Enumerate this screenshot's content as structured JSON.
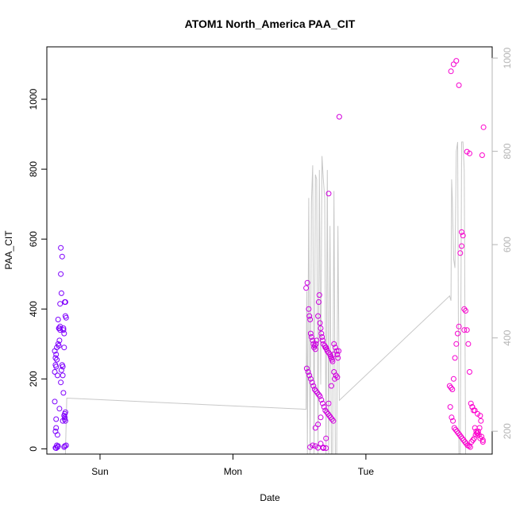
{
  "chart_data": {
    "type": "scatter",
    "title": "ATOM1 North_America PAA_CIT",
    "xlabel": "Date",
    "ylabel": "PAA_CIT",
    "x_ticks": [
      {
        "x": 1.0,
        "label": "Sun"
      },
      {
        "x": 2.0,
        "label": "Mon"
      },
      {
        "x": 3.0,
        "label": "Tue"
      }
    ],
    "y_ticks": [
      0,
      200,
      400,
      600,
      800,
      1000
    ],
    "ylim": [
      -15,
      1150
    ],
    "xlim": [
      0.6,
      3.95
    ],
    "y2_ticks": [
      200,
      400,
      600,
      800,
      1000
    ],
    "y2lim": [
      1024,
      151
    ],
    "colors": {
      "points_start": "#7a00ff",
      "points_end": "#ff00cc",
      "line": "#c8c8c8",
      "axis": "#000000",
      "axis_right": "#b4b4b4"
    },
    "series": [
      {
        "name": "",
        "kind": "points",
        "x": [
          0.66,
          0.67,
          0.665,
          0.67,
          0.68,
          0.675,
          0.68,
          0.685,
          0.67,
          0.665,
          0.66,
          0.67,
          0.675,
          0.665,
          0.66,
          0.675,
          0.68,
          0.665,
          0.67,
          0.69,
          0.7,
          0.695,
          0.7,
          0.705,
          0.705,
          0.71,
          0.715,
          0.7,
          0.69,
          0.685,
          0.705,
          0.71,
          0.72,
          0.715,
          0.725,
          0.73,
          0.725,
          0.73,
          0.72,
          0.735,
          0.735,
          0.74,
          0.73,
          0.735,
          0.74,
          0.745,
          0.735,
          0.73,
          0.745,
          0.74,
          0.735,
          0.685,
          0.695,
          0.695,
          0.72,
          0.725,
          0.74
        ],
        "y": [
          135,
          85,
          50,
          60,
          40,
          10,
          5,
          8,
          2,
          3,
          220,
          235,
          255,
          260,
          280,
          290,
          210,
          240,
          270,
          345,
          340,
          345,
          350,
          500,
          575,
          445,
          550,
          415,
          295,
          300,
          190,
          225,
          235,
          240,
          345,
          330,
          340,
          290,
          80,
          85,
          100,
          105,
          95,
          90,
          80,
          10,
          8,
          5,
          375,
          380,
          420,
          370,
          310,
          115,
          210,
          160,
          420
        ]
      },
      {
        "name": "",
        "kind": "points",
        "x": [
          2.55,
          2.56,
          2.57,
          2.575,
          2.58,
          2.585,
          2.59,
          2.6,
          2.605,
          2.61,
          2.615,
          2.62,
          2.625,
          2.63,
          2.64,
          2.645,
          2.65,
          2.655,
          2.66,
          2.665,
          2.67,
          2.675,
          2.68,
          2.69,
          2.695,
          2.7,
          2.705,
          2.71,
          2.72,
          2.73,
          2.735,
          2.74,
          2.745,
          2.75,
          2.755,
          2.76,
          2.77,
          2.78,
          2.785,
          2.79,
          2.8,
          2.555,
          2.565,
          2.575,
          2.585,
          2.595,
          2.605,
          2.615,
          2.625,
          2.635,
          2.645,
          2.655,
          2.665,
          2.675,
          2.685,
          2.695,
          2.705,
          2.715,
          2.725,
          2.735,
          2.745,
          2.755,
          2.765,
          2.775,
          2.785,
          2.795,
          2.58,
          2.6,
          2.62,
          2.64,
          2.66,
          2.68,
          2.7,
          2.72,
          2.74,
          2.76,
          2.62,
          2.64,
          2.66,
          2.68,
          2.7,
          2.72
        ],
        "y": [
          460,
          475,
          400,
          380,
          370,
          330,
          320,
          310,
          300,
          290,
          295,
          285,
          300,
          310,
          380,
          420,
          440,
          360,
          345,
          330,
          320,
          310,
          300,
          295,
          290,
          290,
          285,
          280,
          275,
          270,
          265,
          260,
          255,
          250,
          270,
          300,
          290,
          280,
          270,
          260,
          950,
          230,
          220,
          210,
          200,
          190,
          180,
          170,
          165,
          160,
          155,
          150,
          140,
          130,
          120,
          110,
          105,
          100,
          95,
          90,
          85,
          80,
          200,
          210,
          205,
          280,
          5,
          10,
          8,
          3,
          15,
          2,
          30,
          130,
          180,
          220,
          60,
          70,
          90,
          4,
          2,
          730
        ]
      },
      {
        "name": "",
        "kind": "points",
        "x": [
          3.63,
          3.64,
          3.65,
          3.66,
          3.67,
          3.68,
          3.69,
          3.7,
          3.71,
          3.72,
          3.73,
          3.74,
          3.75,
          3.76,
          3.77,
          3.78,
          3.79,
          3.8,
          3.81,
          3.82,
          3.83,
          3.84,
          3.85,
          3.86,
          3.87,
          3.88,
          3.635,
          3.645,
          3.655,
          3.665,
          3.675,
          3.685,
          3.695,
          3.705,
          3.715,
          3.725,
          3.735,
          3.745,
          3.755,
          3.765,
          3.775,
          3.785,
          3.795,
          3.805,
          3.815,
          3.825,
          3.835,
          3.845,
          3.855,
          3.865,
          3.875,
          3.885,
          3.64,
          3.66,
          3.68,
          3.7,
          3.72,
          3.74,
          3.76,
          3.78,
          3.8,
          3.82,
          3.84,
          3.86,
          3.88
        ],
        "y": [
          180,
          175,
          170,
          200,
          260,
          300,
          330,
          350,
          560,
          620,
          610,
          400,
          395,
          340,
          300,
          220,
          130,
          120,
          110,
          60,
          50,
          45,
          40,
          30,
          35,
          25,
          120,
          90,
          80,
          60,
          55,
          50,
          45,
          40,
          35,
          30,
          25,
          20,
          15,
          10,
          8,
          5,
          20,
          25,
          30,
          40,
          45,
          50,
          60,
          80,
          840,
          920,
          1080,
          1100,
          1110,
          1040,
          580,
          340,
          850,
          845,
          120,
          110,
          100,
          95,
          20
        ]
      },
      {
        "name": "",
        "kind": "line",
        "axis": "right",
        "x": [
          0.66,
          0.665,
          0.67,
          0.675,
          0.68,
          0.69,
          0.695,
          0.7,
          0.71,
          0.72,
          0.725,
          0.73,
          0.74,
          0.75,
          2.55,
          2.555,
          2.56,
          2.57,
          2.58,
          2.59,
          2.6,
          2.61,
          2.62,
          2.63,
          2.64,
          2.65,
          2.66,
          2.67,
          2.68,
          2.69,
          2.7,
          2.71,
          2.72,
          2.73,
          2.74,
          2.75,
          2.76,
          2.77,
          2.78,
          2.79,
          2.8,
          3.63,
          3.64,
          3.645,
          3.65,
          3.66,
          3.67,
          3.68,
          3.69,
          3.7,
          3.71,
          3.72,
          3.73,
          3.74,
          3.75,
          3.76,
          3.77,
          3.78,
          3.79,
          3.8,
          3.81,
          3.82,
          3.83,
          3.84,
          3.85,
          3.86,
          3.87,
          3.88
        ],
        "y2": [
          151,
          151,
          151,
          151,
          151,
          151,
          151,
          151,
          151,
          151,
          151,
          151,
          151,
          271,
          247,
          500,
          151,
          700,
          151,
          690,
          770,
          151,
          750,
          740,
          151,
          760,
          300,
          790,
          740,
          700,
          151,
          760,
          151,
          640,
          151,
          151,
          715,
          151,
          151,
          640,
          266,
          490,
          480,
          740,
          700,
          570,
          550,
          800,
          820,
          151,
          151,
          820,
          820,
          760,
          151,
          151,
          151,
          151,
          151,
          151,
          151,
          151,
          151,
          151,
          151,
          151,
          151,
          151
        ]
      }
    ]
  }
}
